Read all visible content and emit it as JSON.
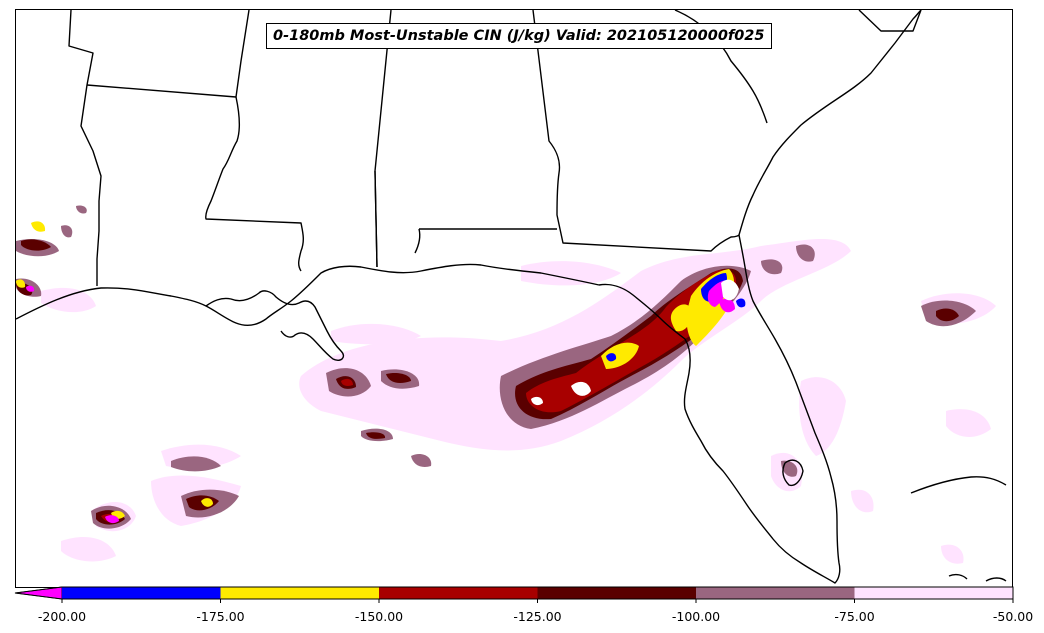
{
  "title": "0-180mb Most-Unstable CIN (J/kg) Valid: 202105120000f025",
  "colorbar": {
    "extend": "min",
    "under_color": "#ff00ff",
    "bins": [
      {
        "min": -200,
        "max": -175,
        "color": "#0000ff"
      },
      {
        "min": -175,
        "max": -150,
        "color": "#ffea00"
      },
      {
        "min": -150,
        "max": -125,
        "color": "#a80000"
      },
      {
        "min": -125,
        "max": -100,
        "color": "#5a0000"
      },
      {
        "min": -100,
        "max": -75,
        "color": "#9a6680"
      },
      {
        "min": -75,
        "max": -50,
        "color": "#ffe3ff"
      }
    ],
    "tick_values": [
      -200,
      -175,
      -150,
      -125,
      -100,
      -75,
      -50
    ],
    "tick_labels": [
      "-200.00",
      "-175.00",
      "-150.00",
      "-125.00",
      "-100.00",
      "-75.00",
      "-50.00"
    ]
  }
}
